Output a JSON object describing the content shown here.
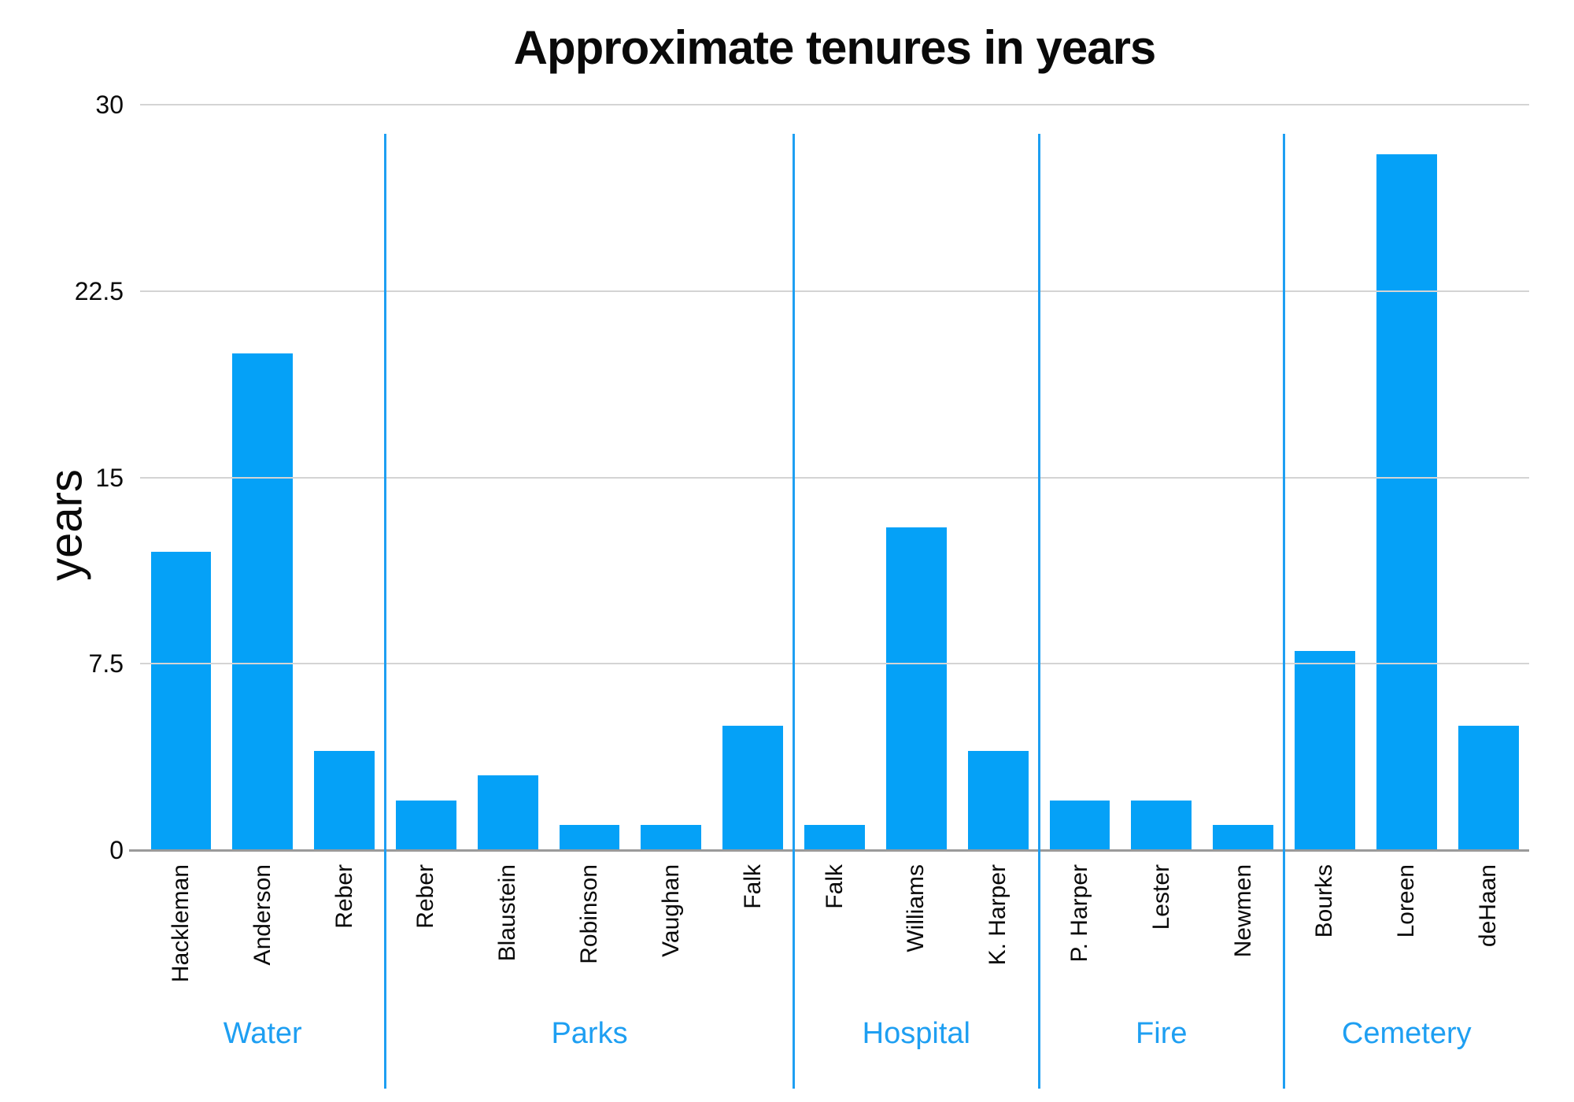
{
  "title": "Approximate tenures in years",
  "y_axis": {
    "label": "years"
  },
  "colors": {
    "bar": "#05a1f7",
    "accent": "#1e9ff2",
    "gridline": "#d4d4d4",
    "axis_line": "#9a9a9a"
  },
  "chart_data": {
    "type": "bar",
    "title": "Approximate tenures in years",
    "xlabel": "",
    "ylabel": "years",
    "ylim": [
      0,
      30
    ],
    "yticks": [
      0,
      7.5,
      15,
      22.5,
      30
    ],
    "ytick_labels": [
      "0",
      "7.5",
      "15",
      "22.5",
      "30"
    ],
    "grid": true,
    "legend": false,
    "groups": [
      {
        "label": "Water",
        "members": [
          {
            "name": "Hackleman",
            "value": 12
          },
          {
            "name": "Anderson",
            "value": 20
          },
          {
            "name": "Reber",
            "value": 4
          }
        ]
      },
      {
        "label": "Parks",
        "members": [
          {
            "name": "Reber",
            "value": 2
          },
          {
            "name": "Blaustein",
            "value": 3
          },
          {
            "name": "Robinson",
            "value": 1
          },
          {
            "name": "Vaughan",
            "value": 1
          },
          {
            "name": "Falk",
            "value": 5
          }
        ]
      },
      {
        "label": "Hospital",
        "members": [
          {
            "name": "Falk",
            "value": 1
          },
          {
            "name": "Williams",
            "value": 13
          },
          {
            "name": "K. Harper",
            "value": 4
          }
        ]
      },
      {
        "label": "Fire",
        "members": [
          {
            "name": "P. Harper",
            "value": 2
          },
          {
            "name": "Lester",
            "value": 2
          },
          {
            "name": "Newmen",
            "value": 1
          }
        ]
      },
      {
        "label": "Cemetery",
        "members": [
          {
            "name": "Bourks",
            "value": 8
          },
          {
            "name": "Loreen",
            "value": 28
          },
          {
            "name": "deHaan",
            "value": 5
          }
        ]
      }
    ]
  }
}
